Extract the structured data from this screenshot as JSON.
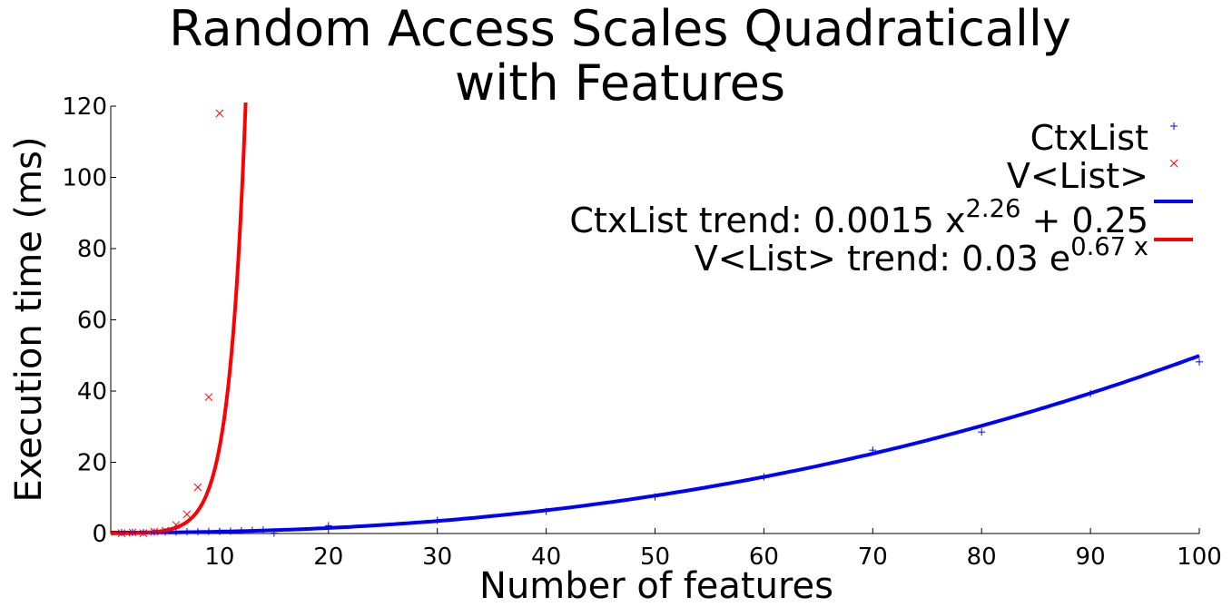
{
  "chart_data": {
    "type": "scatter",
    "title_lines": [
      "Random Access Scales Quadratically",
      "with Features"
    ],
    "xlabel": "Number of features",
    "ylabel": "Execution time (ms)",
    "xlim": [
      0,
      100
    ],
    "ylim": [
      0,
      120
    ],
    "xticks": [
      10,
      20,
      30,
      40,
      50,
      60,
      70,
      80,
      90,
      100
    ],
    "yticks": [
      0,
      20,
      40,
      60,
      80,
      100,
      120
    ],
    "grid": false,
    "legend_position": "top-right",
    "series": [
      {
        "name": "CtxList",
        "kind": "points",
        "marker": "+",
        "color": "#0000ff",
        "x": [
          1,
          2,
          3,
          4,
          5,
          6,
          7,
          8,
          9,
          10,
          11,
          12,
          13,
          14,
          15,
          20,
          30,
          40,
          50,
          60,
          70,
          80,
          90,
          100
        ],
        "y": [
          0.3,
          0.3,
          0.3,
          0.4,
          0.4,
          0.4,
          0.5,
          0.5,
          0.6,
          0.6,
          0.7,
          0.8,
          0.9,
          1.0,
          0.1,
          2.2,
          3.7,
          6.2,
          10.3,
          15.9,
          23.4,
          28.5,
          39.3,
          48.2
        ]
      },
      {
        "name": "V<List>",
        "kind": "points",
        "marker": "x",
        "color": "#ff0000",
        "x": [
          1,
          2,
          3,
          4,
          5,
          6,
          7,
          8,
          9,
          10
        ],
        "y": [
          0.1,
          0.3,
          0.1,
          0.5,
          0.8,
          2.4,
          5.4,
          13.0,
          38.3,
          118.0
        ]
      },
      {
        "name": "CtxList trend: 0.0015 x^2.26 + 0.25",
        "kind": "line",
        "color": "#0000ff",
        "formula": {
          "a": 0.0015,
          "b": 2.26,
          "c": 0.25
        }
      },
      {
        "name": "V<List> trend: 0.03 e^0.67 x",
        "kind": "line",
        "color": "#ff0000",
        "formula": {
          "a": 0.03,
          "b": 0.67
        }
      }
    ]
  },
  "legend": {
    "ctx_points": "CtxList",
    "v_points": "V<List>",
    "ctx_trend_prefix": "CtxList trend: 0.0015 x",
    "ctx_trend_exp": "2.26",
    "ctx_trend_suffix": " + 0.25",
    "v_trend_prefix": "V<List> trend: 0.03 e",
    "v_trend_exp": "0.67 x"
  }
}
